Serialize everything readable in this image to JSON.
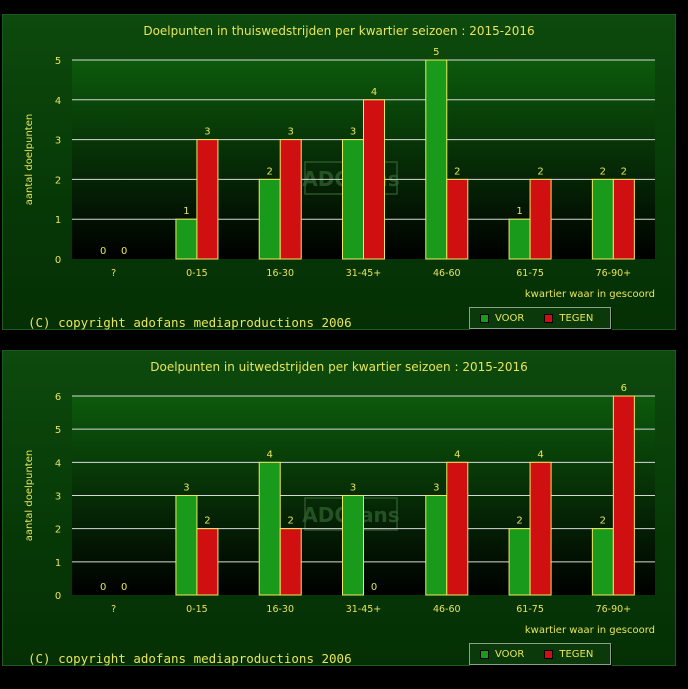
{
  "colors": {
    "voor": "#1a9a1a",
    "tegen": "#d01010",
    "text": "#e8e45a"
  },
  "watermark": "ADOfans",
  "chart_data": [
    {
      "type": "bar",
      "title": "Doelpunten in thuiswedstrijden per kwartier seizoen : 2015-2016",
      "xlabel": "kwartier waar in gescoord",
      "ylabel": "aantal doelpunten",
      "categories": [
        "?",
        "0-15",
        "16-30",
        "31-45+",
        "46-60",
        "61-75",
        "76-90+"
      ],
      "series": [
        {
          "name": "VOOR",
          "values": [
            0,
            1,
            2,
            3,
            5,
            1,
            2
          ]
        },
        {
          "name": "TEGEN",
          "values": [
            0,
            3,
            3,
            4,
            2,
            2,
            2
          ]
        }
      ],
      "yticks": [
        0,
        1,
        2,
        3,
        4,
        5
      ],
      "ylim": [
        0,
        5
      ],
      "grid": true,
      "legend": "bottom-right",
      "copyright": "(C) copyright adofans mediaproductions 2006"
    },
    {
      "type": "bar",
      "title": "Doelpunten in uitwedstrijden per kwartier seizoen : 2015-2016",
      "xlabel": "kwartier waar in gescoord",
      "ylabel": "aantal doelpunten",
      "categories": [
        "?",
        "0-15",
        "16-30",
        "31-45+",
        "46-60",
        "61-75",
        "76-90+"
      ],
      "series": [
        {
          "name": "VOOR",
          "values": [
            0,
            3,
            4,
            3,
            3,
            2,
            2
          ]
        },
        {
          "name": "TEGEN",
          "values": [
            0,
            2,
            2,
            0,
            4,
            4,
            6
          ]
        }
      ],
      "yticks": [
        0,
        1,
        2,
        3,
        4,
        5,
        6
      ],
      "ylim": [
        0,
        6
      ],
      "grid": true,
      "legend": "bottom-right",
      "copyright": "(C) copyright adofans mediaproductions 2006"
    }
  ]
}
